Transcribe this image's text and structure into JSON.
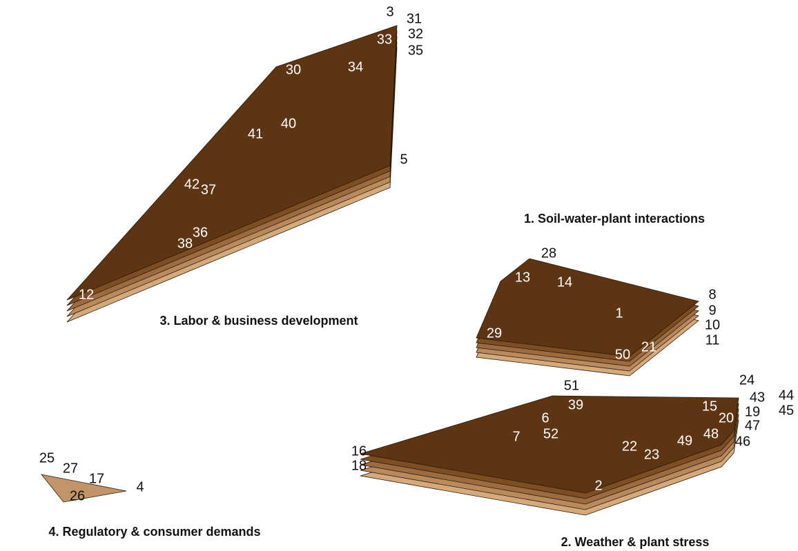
{
  "clusters": [
    {
      "title": "1. Soil-water-plant interactions",
      "labels": [
        "28",
        "13",
        "14",
        "8",
        "9",
        "10",
        "11",
        "1",
        "29",
        "50",
        "21"
      ]
    },
    {
      "title": "2. Weather & plant stress",
      "labels": [
        "24",
        "43",
        "44",
        "45",
        "19",
        "47",
        "46",
        "51",
        "15",
        "20",
        "39",
        "6",
        "48",
        "49",
        "22",
        "23",
        "52",
        "7",
        "16",
        "18",
        "2"
      ]
    },
    {
      "title": "3. Labor & business development",
      "labels": [
        "3",
        "31",
        "32",
        "35",
        "33",
        "30",
        "34",
        "41",
        "40",
        "5",
        "42",
        "37",
        "36",
        "38",
        "12"
      ]
    },
    {
      "title": "4. Regulatory & consumer demands",
      "labels": [
        "25",
        "27",
        "17",
        "26",
        "4"
      ]
    }
  ]
}
